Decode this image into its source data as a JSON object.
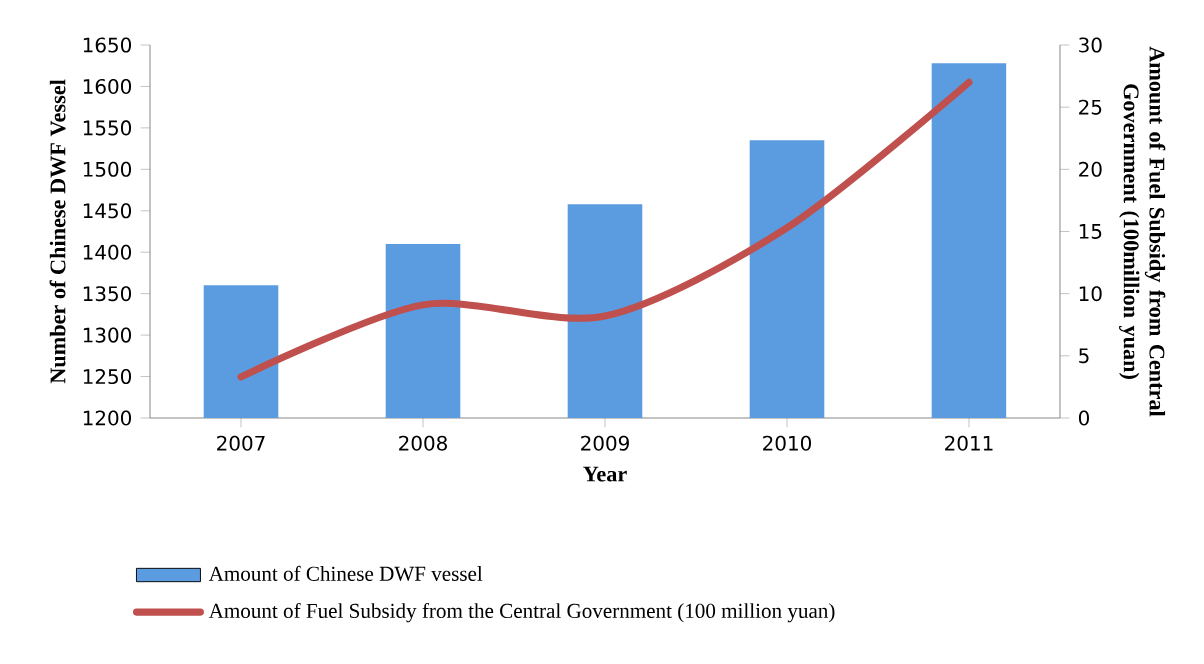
{
  "chart_data": {
    "type": "bar",
    "categories": [
      "2007",
      "2008",
      "2009",
      "2010",
      "2011"
    ],
    "series": [
      {
        "name": "Amount of Chinese DWF vessel",
        "color": "#5b9be0",
        "values": [
          1360,
          1410,
          1458,
          1535,
          1628
        ]
      },
      {
        "name": "Amount of Fuel Subsidy from the Central Government (100 million yuan)",
        "type": "line",
        "axis": "y2",
        "color": "#c0504d",
        "values": [
          3.3,
          9.1,
          8.2,
          15.3,
          27.0
        ]
      }
    ],
    "xlabel": "Year",
    "ylabel": "Number of Chinese DWF Vessel",
    "y2label": "Amount of Fuel Subsidy from Central Government (100million yuan)",
    "ylim": [
      1200,
      1650
    ],
    "yticks": [
      1200,
      1250,
      1300,
      1350,
      1400,
      1450,
      1500,
      1550,
      1600,
      1650
    ],
    "y2lim": [
      0,
      30
    ],
    "y2ticks": [
      0,
      5,
      10,
      15,
      20,
      25,
      30
    ],
    "legend": "bottom",
    "marker": "none"
  }
}
